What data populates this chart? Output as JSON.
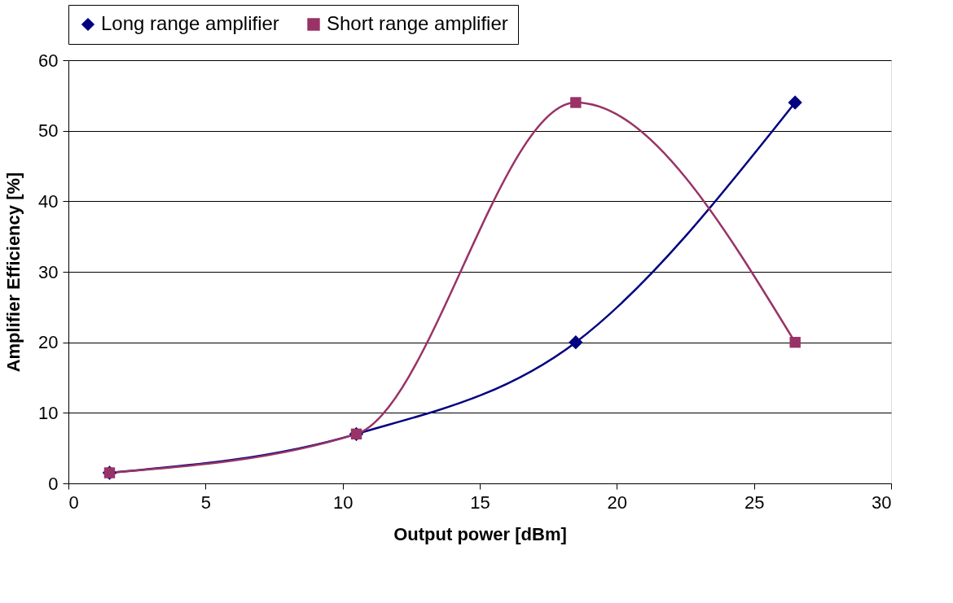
{
  "chart_data": {
    "type": "line",
    "xlabel": "Output power [dBm]",
    "ylabel": "Amplifier Efficiency [%]",
    "xlim": [
      0,
      30
    ],
    "xticks": [
      0,
      5,
      10,
      15,
      20,
      25,
      30
    ],
    "ylim": [
      0,
      60
    ],
    "yticks": [
      0,
      10,
      20,
      30,
      40,
      50,
      60
    ],
    "grid": "y",
    "legend": "top",
    "line_style": "solid",
    "series": [
      {
        "name": "Long range amplifier",
        "color": "#000080",
        "marker": "diamond",
        "x": [
          1.5,
          10.5,
          18.5,
          26.5
        ],
        "values": [
          1.5,
          7,
          20,
          54
        ]
      },
      {
        "name": "Short range amplifier",
        "color": "#993366",
        "marker": "square",
        "x": [
          1.5,
          10.5,
          18.5,
          26.5
        ],
        "values": [
          1.5,
          7,
          54,
          20
        ]
      }
    ]
  }
}
